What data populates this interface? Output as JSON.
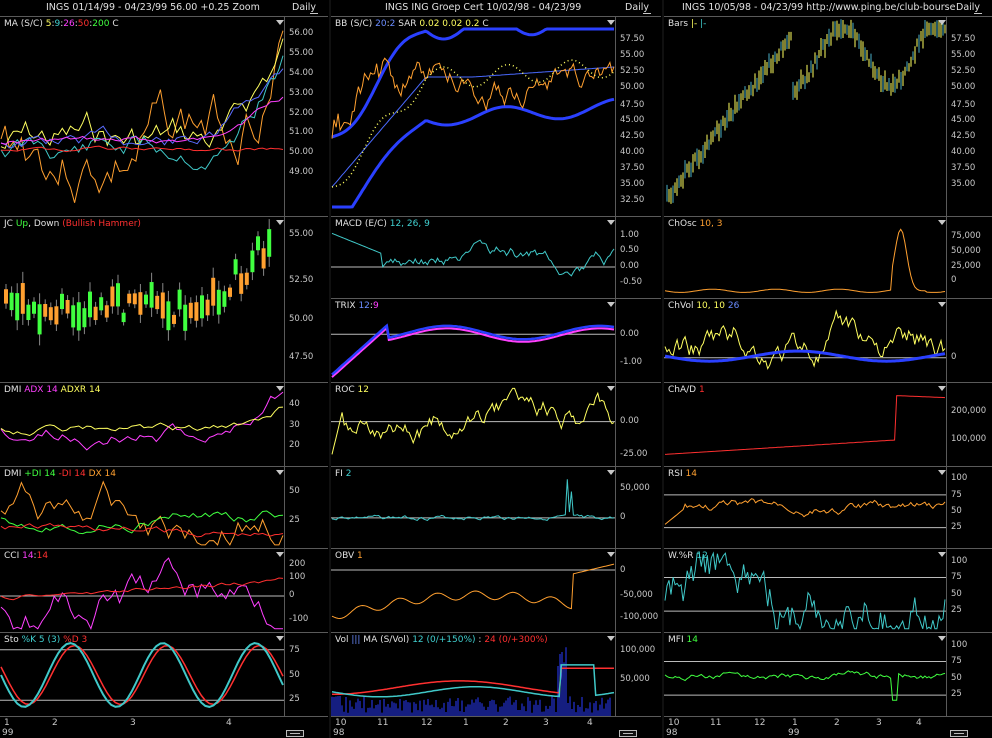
{
  "colors": {
    "bg": "#000000",
    "grid": "#5a5a5a",
    "yellow": "#ffff60",
    "magenta": "#ff40ff",
    "red": "#ff3030",
    "cyan": "#40c8c8",
    "green": "#40ff40",
    "blue": "#2a40ff",
    "orange": "#ffa030"
  },
  "left": {
    "title": "INGS  01/14/99 - 04/23/99    56.00   +0.25    Zoom",
    "daily": "Daily",
    "panels": [
      {
        "label": [
          "MA (S/C) ",
          "5",
          ":",
          "9",
          ":",
          "26",
          ":",
          "50",
          ":",
          "200",
          "   C"
        ],
        "axis": [
          "56.00",
          "55.00",
          "54.00",
          "53.00",
          "52.00",
          "51.00",
          "50.00",
          "49.00"
        ]
      },
      {
        "label": [
          "JC ",
          "Up",
          ", ",
          "Down",
          "  (Bullish Hammer)"
        ],
        "axis": [
          "55.00",
          "52.50",
          "50.00",
          "47.50"
        ]
      },
      {
        "label": [
          "DMI  ",
          "ADX 14",
          "  ",
          "ADXR 14"
        ],
        "axis": [
          "40",
          "30",
          "20"
        ]
      },
      {
        "label": [
          "DMI  ",
          "+DI 14",
          "  ",
          "-DI 14",
          "  ",
          "DX 14"
        ],
        "axis": [
          "50",
          "25"
        ]
      },
      {
        "label": [
          "CCI  ",
          "14",
          ":",
          "14"
        ],
        "axis": [
          "200",
          "100",
          "0",
          "-100"
        ]
      },
      {
        "label": [
          "Sto  ",
          "%K 5 (3)",
          "  ",
          "%D 3"
        ],
        "axis": [
          "75",
          "50",
          "25"
        ]
      }
    ],
    "xlabels": [
      "1",
      "2",
      "3",
      "4"
    ],
    "year": "99"
  },
  "middle": {
    "title": "INGS    ING Groep Cert    10/02/98 - 04/23/99",
    "daily": "Daily",
    "panels": [
      {
        "label": [
          "BB (S/C) ",
          "20",
          ":",
          "2",
          "    SAR  ",
          "0.02",
          "  ",
          "0.02",
          "   ",
          "0.2",
          "    C"
        ],
        "axis": [
          "57.50",
          "55.00",
          "52.50",
          "50.00",
          "47.50",
          "45.00",
          "42.50",
          "40.00",
          "37.50",
          "35.00",
          "32.50"
        ]
      },
      {
        "label": [
          "MACD (E/C)  ",
          "12, 26, 9"
        ],
        "axis": [
          "1.00",
          "0.50",
          "0.00",
          "-0.50"
        ]
      },
      {
        "label": [
          "TRIX  ",
          "12",
          ":",
          "9"
        ],
        "axis": [
          "0.00",
          "-1.00"
        ]
      },
      {
        "label": [
          "ROC  ",
          "12"
        ],
        "axis": [
          "0.00",
          "-25.00"
        ]
      },
      {
        "label": [
          "FI  ",
          "2"
        ],
        "axis": [
          "50,000",
          "0"
        ]
      },
      {
        "label": [
          "OBV  ",
          "1"
        ],
        "axis": [
          "0",
          "-50,000",
          "-100,000"
        ]
      },
      {
        "label": [
          "Vol  ",
          "|||",
          "    MA (S/Vol)  ",
          "12 (0/+150%)",
          " : ",
          "24 (0/+300%)"
        ],
        "axis": [
          "100,000",
          "50,000"
        ]
      }
    ],
    "xlabels": [
      "10",
      "11",
      "12",
      "1",
      "2",
      "3",
      "4"
    ],
    "year": "98"
  },
  "right": {
    "title": "INGS    10/05/98 - 04/23/99     http://www.ping.be/club-bourse",
    "daily": "Daily",
    "panels": [
      {
        "label": [
          "Bars  ",
          "|-",
          "  ",
          "|-"
        ],
        "axis": [
          "57.50",
          "55.00",
          "52.50",
          "50.00",
          "47.50",
          "45.00",
          "42.50",
          "40.00",
          "37.50",
          "35.00"
        ]
      },
      {
        "label": [
          "ChOsc  ",
          "10, 3"
        ],
        "axis": [
          "75,000",
          "50,000",
          "25,000",
          "0"
        ]
      },
      {
        "label": [
          "ChVol  ",
          "10, 10",
          "  ",
          "26"
        ],
        "axis": [
          "0"
        ]
      },
      {
        "label": [
          "ChA/D  ",
          "1"
        ],
        "axis": [
          "200,000",
          "100,000"
        ]
      },
      {
        "label": [
          "RSI  ",
          "14"
        ],
        "axis": [
          "100",
          "75",
          "50",
          "25"
        ]
      },
      {
        "label": [
          "W.%R  ",
          "12"
        ],
        "axis": [
          "100",
          "75",
          "50",
          "25"
        ]
      },
      {
        "label": [
          "MFI  ",
          "14"
        ],
        "axis": [
          "100",
          "75",
          "50",
          "25"
        ]
      }
    ],
    "xlabels": [
      "10",
      "11",
      "12",
      "1",
      "2",
      "3",
      "4"
    ],
    "year": "98",
    "year2": "99"
  }
}
